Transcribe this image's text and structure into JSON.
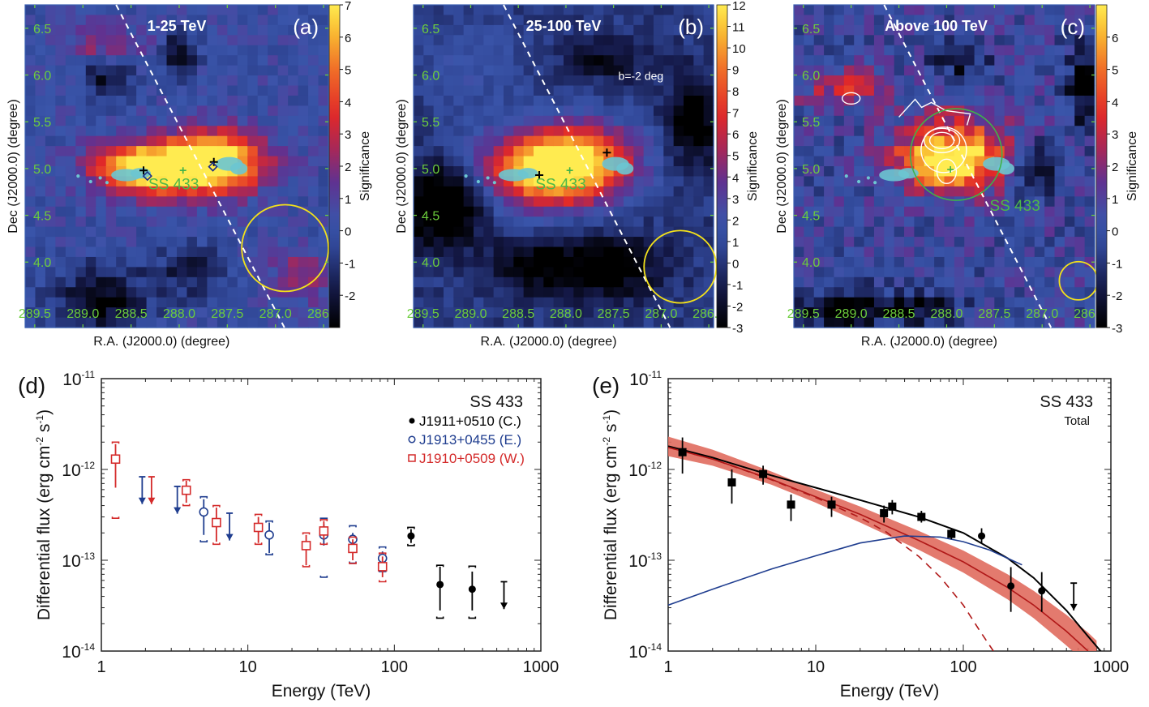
{
  "chart_data": [
    {
      "panel": "(a)",
      "type": "heatmap",
      "title": "1-25 TeV",
      "xlabel": "R.A. (J2000.0) (degree)",
      "ylabel": "Dec (J2000.0) (degree)",
      "xticks": [
        "289.5",
        "289.0",
        "288.5",
        "288.0",
        "287.5",
        "287.0",
        "286.5"
      ],
      "yticks": [
        "6.5",
        "6.0",
        "5.5",
        "5.0",
        "4.5",
        "4.0"
      ],
      "xlim": [
        289.6,
        286.45
      ],
      "ylim": [
        3.3,
        6.75
      ],
      "colorbar": {
        "label": "Significance",
        "ticks": [
          "7",
          "6",
          "5",
          "4",
          "3",
          "2",
          "1",
          "0",
          "-1",
          "-2"
        ],
        "range": [
          -3,
          7
        ]
      },
      "source_label": "SS 433",
      "annotations": {
        "galactic_line": ""
      },
      "markers": [
        {
          "kind": "plus-black",
          "ra": 288.37,
          "dec": 4.98
        },
        {
          "kind": "diamond-blue",
          "ra": 288.33,
          "dec": 4.92
        },
        {
          "kind": "plus-black",
          "ra": 287.64,
          "dec": 5.07
        },
        {
          "kind": "diamond-blue",
          "ra": 287.65,
          "dec": 5.02
        },
        {
          "kind": "plus-green",
          "ra": 287.96,
          "dec": 4.98
        }
      ],
      "psf_circle": {
        "ra": 286.9,
        "dec": 4.15,
        "r_deg": 0.45
      },
      "blobs": [
        {
          "ra": 288.38,
          "dec": 5.0,
          "sigma_ra": 0.35,
          "sigma_dec": 0.18,
          "amp": 6.3
        },
        {
          "ra": 287.62,
          "dec": 5.08,
          "sigma_ra": 0.35,
          "sigma_dec": 0.22,
          "amp": 6.6
        },
        {
          "ra": 288.0,
          "dec": 5.0,
          "sigma_ra": 0.45,
          "sigma_dec": 0.2,
          "amp": 3.0
        },
        {
          "ra": 286.75,
          "dec": 3.85,
          "sigma_ra": 0.2,
          "sigma_dec": 0.2,
          "amp": 2.2
        },
        {
          "ra": 288.8,
          "dec": 6.3,
          "sigma_ra": 0.3,
          "sigma_dec": 0.15,
          "amp": 2.0
        },
        {
          "ra": 288.0,
          "dec": 6.2,
          "sigma_ra": 0.12,
          "sigma_dec": 0.15,
          "amp": -3.5
        },
        {
          "ra": 288.75,
          "dec": 6.0,
          "sigma_ra": 0.2,
          "sigma_dec": 0.15,
          "amp": -2.8
        },
        {
          "ra": 288.8,
          "dec": 3.6,
          "sigma_ra": 0.35,
          "sigma_dec": 0.25,
          "amp": -3.0
        },
        {
          "ra": 287.9,
          "dec": 3.9,
          "sigma_ra": 0.25,
          "sigma_dec": 0.2,
          "amp": -2.0
        }
      ]
    },
    {
      "panel": "(b)",
      "type": "heatmap",
      "title": "25-100 TeV",
      "xlabel": "R.A. (J2000.0) (degree)",
      "ylabel": "Dec (J2000.0) (degree)",
      "xticks": [
        "289.5",
        "289.0",
        "288.5",
        "288.0",
        "287.5",
        "287.0",
        "286.5"
      ],
      "yticks": [
        "6.5",
        "6.0",
        "5.5",
        "5.0",
        "4.5",
        "4.0"
      ],
      "xlim": [
        289.6,
        286.45
      ],
      "ylim": [
        3.3,
        6.75
      ],
      "colorbar": {
        "label": "Significance",
        "ticks": [
          "12",
          "11",
          "10",
          "9",
          "8",
          "7",
          "6",
          "5",
          "4",
          "3",
          "2",
          "1",
          "0",
          "-1",
          "-2",
          "-3"
        ],
        "range": [
          -3,
          12
        ]
      },
      "source_label": "SS 433",
      "annotations": {
        "galactic_line": "b=-2 deg"
      },
      "markers": [
        {
          "kind": "plus-black",
          "ra": 288.28,
          "dec": 4.93
        },
        {
          "kind": "plus-black",
          "ra": 287.57,
          "dec": 5.17
        },
        {
          "kind": "plus-green",
          "ra": 287.96,
          "dec": 4.98
        }
      ],
      "psf_circle": {
        "ra": 286.8,
        "dec": 3.95,
        "r_deg": 0.38
      },
      "blobs": [
        {
          "ra": 288.2,
          "dec": 5.0,
          "sigma_ra": 0.45,
          "sigma_dec": 0.28,
          "amp": 12.5
        },
        {
          "ra": 287.7,
          "dec": 5.1,
          "sigma_ra": 0.4,
          "sigma_dec": 0.28,
          "amp": 5.5
        },
        {
          "ra": 289.3,
          "dec": 4.6,
          "sigma_ra": 0.3,
          "sigma_dec": 0.3,
          "amp": -5.5
        },
        {
          "ra": 287.6,
          "dec": 3.95,
          "sigma_ra": 0.4,
          "sigma_dec": 0.25,
          "amp": -4.0
        },
        {
          "ra": 288.4,
          "dec": 3.95,
          "sigma_ra": 0.3,
          "sigma_dec": 0.2,
          "amp": -3.0
        },
        {
          "ra": 286.65,
          "dec": 5.5,
          "sigma_ra": 0.2,
          "sigma_dec": 0.35,
          "amp": -4.0
        },
        {
          "ra": 287.6,
          "dec": 6.15,
          "sigma_ra": 0.3,
          "sigma_dec": 0.15,
          "amp": -2.5
        },
        {
          "ra": 289.0,
          "dec": 6.1,
          "sigma_ra": 0.35,
          "sigma_dec": 0.4,
          "amp": 1.5
        }
      ]
    },
    {
      "panel": "(c)",
      "type": "heatmap",
      "title": "Above 100 TeV",
      "xlabel": "R.A. (J2000.0) (degree)",
      "ylabel": "Dec (J2000.0) (degree)",
      "xticks": [
        "289.5",
        "289.0",
        "288.5",
        "288.0",
        "287.5",
        "287.0",
        "286.5"
      ],
      "yticks": [
        "6.5",
        "6.0",
        "5.5",
        "5.0",
        "4.5",
        "4.0"
      ],
      "xlim": [
        289.6,
        286.45
      ],
      "ylim": [
        3.3,
        6.75
      ],
      "colorbar": {
        "label": "Significance",
        "ticks": [
          "6",
          "5",
          "4",
          "3",
          "2",
          "1",
          "0",
          "-1",
          "-2",
          "-3"
        ],
        "range": [
          -3,
          7
        ]
      },
      "source_label": "SS 433",
      "annotations": {
        "galactic_line": ""
      },
      "markers": [
        {
          "kind": "plus-green",
          "ra": 287.96,
          "dec": 4.99
        }
      ],
      "psf_circle": {
        "ra": 286.62,
        "dec": 3.8,
        "r_deg": 0.2
      },
      "extent_circle": {
        "ra": 287.9,
        "dec": 5.15,
        "r_deg": 0.48
      },
      "blobs": [
        {
          "ra": 288.0,
          "dec": 5.05,
          "sigma_ra": 0.35,
          "sigma_dec": 0.2,
          "amp": 6.3
        },
        {
          "ra": 287.85,
          "dec": 5.25,
          "sigma_ra": 0.45,
          "sigma_dec": 0.3,
          "amp": 3.0
        },
        {
          "ra": 289.1,
          "dec": 5.85,
          "sigma_ra": 0.3,
          "sigma_dec": 0.15,
          "amp": 2.8
        },
        {
          "ra": 286.55,
          "dec": 5.9,
          "sigma_ra": 0.12,
          "sigma_dec": 0.3,
          "amp": -4.0
        },
        {
          "ra": 287.05,
          "dec": 5.0,
          "sigma_ra": 0.15,
          "sigma_dec": 0.2,
          "amp": -3.5
        },
        {
          "ra": 289.1,
          "dec": 3.5,
          "sigma_ra": 0.3,
          "sigma_dec": 0.15,
          "amp": -4.0
        },
        {
          "ra": 288.3,
          "dec": 3.5,
          "sigma_ra": 0.3,
          "sigma_dec": 0.12,
          "amp": -3.0
        },
        {
          "ra": 287.85,
          "dec": 6.15,
          "sigma_ra": 0.2,
          "sigma_dec": 0.15,
          "amp": -2.5
        }
      ]
    },
    {
      "panel": "(d)",
      "type": "scatter",
      "xscale": "log",
      "yscale": "log",
      "xlabel": "Energy (TeV)",
      "ylabel": "Differential flux (erg cm-2 s-1)",
      "xlim": [
        1,
        1000
      ],
      "ylim": [
        1e-14,
        1e-11
      ],
      "xticks": [
        "1",
        "10",
        "100",
        "1000"
      ],
      "yticks": [
        "10^-11",
        "10^-12",
        "10^-13",
        "10^-14"
      ],
      "legend_title": "SS 433",
      "legend_position": "top-right",
      "series": [
        {
          "name": "J1911+0510 (C.)",
          "color": "#000000",
          "marker": "filled-circle",
          "points": [
            {
              "x": 130,
              "y": 1.85e-13,
              "ylo": 1.55e-13,
              "yhi": 2.2e-13,
              "syslo": 1.45e-13,
              "syshi": 2.3e-13
            },
            {
              "x": 205,
              "y": 5.4e-14,
              "ylo": 2.8e-14,
              "yhi": 8.5e-14,
              "syslo": 2.3e-14,
              "syshi": 8.8e-14
            },
            {
              "x": 340,
              "y": 4.8e-14,
              "ylo": 2.8e-14,
              "yhi": 7.5e-14,
              "syslo": 2.3e-14,
              "syshi": 8.6e-14
            }
          ],
          "upper_limits": [
            {
              "x": 560,
              "y": 5.8e-14
            }
          ]
        },
        {
          "name": "J1913+0455 (E.)",
          "color": "#1f3d8f",
          "marker": "open-circle",
          "points": [
            {
              "x": 5.0,
              "y": 3.4e-13,
              "ylo": 1.9e-13,
              "yhi": 4.7e-13,
              "syslo": 1.6e-13,
              "syshi": 5e-13
            },
            {
              "x": 14.0,
              "y": 1.9e-13,
              "ylo": 1.2e-13,
              "yhi": 2.6e-13,
              "syslo": 1.15e-13,
              "syshi": 2.7e-13
            },
            {
              "x": 33.0,
              "y": 1.9e-13,
              "ylo": 1.45e-13,
              "yhi": 2.5e-13,
              "syslo": 6.5e-14,
              "syshi": 2.9e-13
            },
            {
              "x": 52.0,
              "y": 1.7e-13,
              "ylo": 1.35e-13,
              "yhi": 2e-13,
              "syslo": 9.3e-14,
              "syshi": 2.4e-13
            },
            {
              "x": 83.0,
              "y": 1.05e-13,
              "ylo": 7.8e-14,
              "yhi": 1.25e-13,
              "syslo": 7.5e-14,
              "syshi": 1.4e-13
            }
          ],
          "upper_limits": [
            {
              "x": 1.9,
              "y": 8.3e-13
            },
            {
              "x": 3.3,
              "y": 6.5e-13
            },
            {
              "x": 7.5,
              "y": 3.3e-13
            }
          ]
        },
        {
          "name": "J1910+0509 (W.)",
          "color": "#d42a2a",
          "marker": "open-square",
          "points": [
            {
              "x": 1.25,
              "y": 1.3e-12,
              "ylo": 6.3e-13,
              "yhi": 1.9e-12,
              "syslo": 2.9e-13,
              "syshi": 2e-12
            },
            {
              "x": 3.8,
              "y": 5.9e-13,
              "ylo": 4.3e-13,
              "yhi": 7.5e-13,
              "syslo": 4e-13,
              "syshi": 7.7e-13
            },
            {
              "x": 6.1,
              "y": 2.6e-13,
              "ylo": 1.6e-13,
              "yhi": 3.8e-13,
              "syslo": 1.5e-13,
              "syshi": 4e-13
            },
            {
              "x": 11.8,
              "y": 2.3e-13,
              "ylo": 1.55e-13,
              "yhi": 3e-13,
              "syslo": 1.5e-13,
              "syshi": 3.2e-13
            },
            {
              "x": 25.0,
              "y": 1.45e-13,
              "ylo": 8.8e-14,
              "yhi": 1.9e-13,
              "syslo": 8.5e-14,
              "syshi": 2e-13
            },
            {
              "x": 33.0,
              "y": 2.1e-13,
              "ylo": 1.7e-13,
              "yhi": 2.7e-13,
              "syslo": 1.5e-13,
              "syshi": 2.8e-13
            },
            {
              "x": 52.0,
              "y": 1.35e-13,
              "ylo": 1e-13,
              "yhi": 1.7e-13,
              "syslo": 9.2e-14,
              "syshi": 1.8e-13
            },
            {
              "x": 83.0,
              "y": 8.5e-14,
              "ylo": 6.5e-14,
              "yhi": 1.1e-13,
              "syslo": 5.8e-14,
              "syshi": 1.2e-13
            }
          ],
          "upper_limits": [
            {
              "x": 2.2,
              "y": 8.3e-13
            }
          ]
        }
      ]
    },
    {
      "panel": "(e)",
      "type": "line",
      "xscale": "log",
      "yscale": "log",
      "xlabel": "Energy (TeV)",
      "ylabel": "Differential flux (erg cm-2 s-1)",
      "xlim": [
        1,
        1000
      ],
      "ylim": [
        1e-14,
        1e-11
      ],
      "xticks": [
        "1",
        "10",
        "100",
        "1000"
      ],
      "yticks": [
        "10^-11",
        "10^-12",
        "10^-13",
        "10^-14"
      ],
      "legend_title": "SS 433",
      "legend_subtitle": "Total",
      "legend_position": "top-right",
      "points": [
        {
          "x": 1.25,
          "y": 1.55e-12,
          "ylo": 9e-13,
          "yhi": 2.25e-12,
          "marker": "square"
        },
        {
          "x": 2.7,
          "y": 7.2e-13,
          "ylo": 4.2e-13,
          "yhi": 1e-12,
          "marker": "square"
        },
        {
          "x": 4.4,
          "y": 8.9e-13,
          "ylo": 6.8e-13,
          "yhi": 1.1e-12,
          "marker": "square"
        },
        {
          "x": 6.8,
          "y": 4.1e-13,
          "ylo": 2.7e-13,
          "yhi": 5.3e-13,
          "marker": "square"
        },
        {
          "x": 12.8,
          "y": 4.1e-13,
          "ylo": 3e-13,
          "yhi": 5e-13,
          "marker": "square"
        },
        {
          "x": 29.0,
          "y": 3.3e-13,
          "ylo": 2.6e-13,
          "yhi": 4e-13,
          "marker": "square"
        },
        {
          "x": 33.0,
          "y": 3.9e-13,
          "ylo": 3.2e-13,
          "yhi": 4.6e-13,
          "marker": "square"
        },
        {
          "x": 52.0,
          "y": 3e-13,
          "ylo": 2.6e-13,
          "yhi": 3.5e-13,
          "marker": "square"
        },
        {
          "x": 83.0,
          "y": 1.95e-13,
          "ylo": 1.7e-13,
          "yhi": 2.2e-13,
          "marker": "square"
        },
        {
          "x": 133.0,
          "y": 1.85e-13,
          "ylo": 1.55e-13,
          "yhi": 2.25e-13,
          "marker": "circle"
        },
        {
          "x": 210.0,
          "y": 5.2e-14,
          "ylo": 2.7e-14,
          "yhi": 8.4e-14,
          "marker": "circle"
        },
        {
          "x": 340.0,
          "y": 4.6e-14,
          "ylo": 2.7e-14,
          "yhi": 7.4e-14,
          "marker": "circle"
        }
      ],
      "upper_limits": [
        {
          "x": 560,
          "y": 5.6e-14
        }
      ],
      "curves": [
        {
          "name": "total-model",
          "color": "#000000",
          "style": "solid",
          "x": [
            1,
            2,
            5,
            10,
            20,
            50,
            100,
            200,
            300,
            500,
            700,
            900
          ],
          "y": [
            1.8e-12,
            1.35e-12,
            8.6e-13,
            6.3e-13,
            4.6e-13,
            3e-13,
            2e-13,
            1.05e-13,
            6.4e-14,
            2.8e-14,
            1.45e-14,
            9e-15
          ]
        },
        {
          "name": "red-model",
          "color": "#b01818",
          "style": "solid",
          "x": [
            1,
            2,
            5,
            10,
            20,
            50,
            100,
            200,
            300,
            500,
            700
          ],
          "y": [
            1.75e-12,
            1.3e-12,
            7.8e-13,
            5e-13,
            3.2e-13,
            1.65e-13,
            9.6e-14,
            5e-14,
            3.2e-14,
            1.65e-14,
            1e-14
          ]
        },
        {
          "name": "red-model-cutoff",
          "color": "#b01818",
          "style": "dashed",
          "x": [
            1,
            2,
            5,
            10,
            20,
            30,
            50,
            70,
            100,
            130,
            160
          ],
          "y": [
            1.75e-12,
            1.3e-12,
            7.7e-13,
            4.9e-13,
            2.95e-13,
            2.05e-13,
            1.1e-13,
            6.5e-14,
            3.2e-14,
            1.65e-14,
            1e-14
          ]
        },
        {
          "name": "blue-model",
          "color": "#1f3d8f",
          "style": "solid",
          "x": [
            1,
            2,
            5,
            10,
            20,
            40,
            70,
            100,
            150,
            200,
            250
          ],
          "y": [
            3.2e-14,
            4.8e-14,
            8e-14,
            1.12e-13,
            1.55e-13,
            1.85e-13,
            1.8e-13,
            1.6e-13,
            1.3e-13,
            1.05e-13,
            8.9e-14
          ]
        }
      ],
      "band": {
        "name": "red-uncertainty-band",
        "color": "#e06c5e",
        "x": [
          1,
          2,
          5,
          10,
          20,
          50,
          100,
          200,
          300,
          500,
          700,
          800
        ],
        "ylo": [
          1.4e-12,
          1.1e-12,
          6.8e-13,
          4.3e-13,
          2.6e-13,
          1.3e-13,
          7.3e-14,
          3.7e-14,
          2.3e-14,
          1.15e-14,
          7e-15,
          5.5e-15
        ],
        "yhi": [
          2.3e-12,
          1.65e-12,
          9.5e-13,
          6e-13,
          3.9e-13,
          2.1e-13,
          1.28e-13,
          7e-14,
          4.6e-14,
          2.5e-14,
          1.6e-14,
          1.3e-14
        ]
      }
    }
  ],
  "labels": {
    "panel_d": "(d)",
    "panel_e": "(e)",
    "panel_a": "(a)",
    "panel_b": "(b)",
    "panel_c": "(c)"
  }
}
